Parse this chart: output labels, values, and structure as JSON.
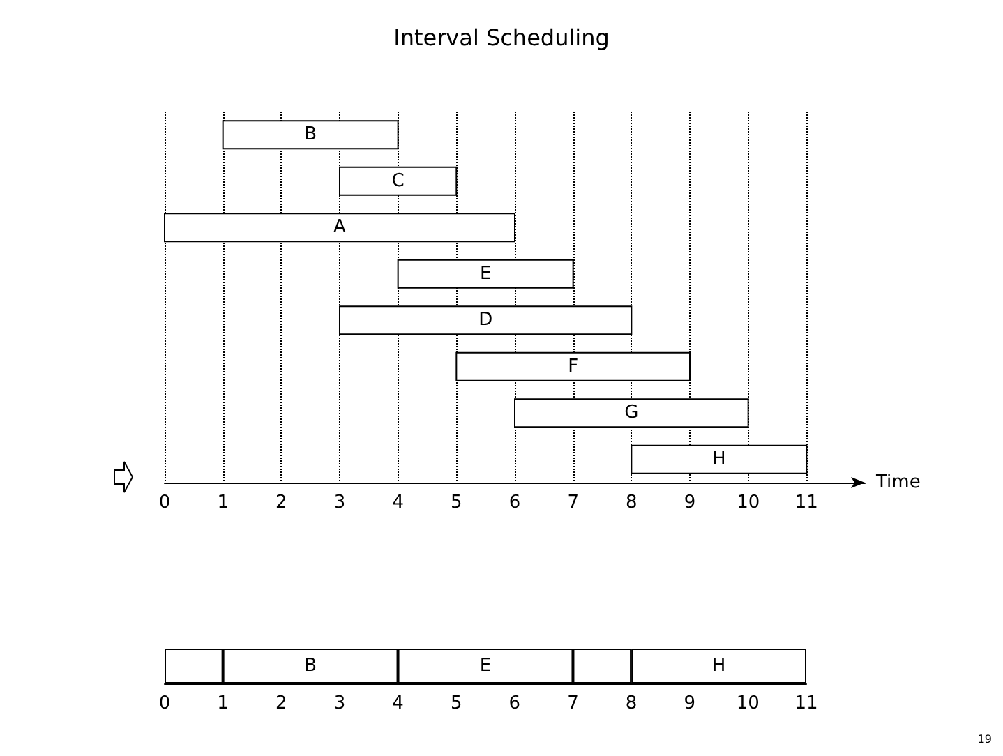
{
  "chart_data": [
    {
      "type": "bar",
      "title": "Interval Scheduling",
      "orientation": "horizontal",
      "categories": [
        "B",
        "C",
        "A",
        "E",
        "D",
        "F",
        "G",
        "H"
      ],
      "base": [
        1,
        3,
        0,
        4,
        3,
        5,
        6,
        8
      ],
      "values": [
        3,
        2,
        6,
        3,
        5,
        4,
        4,
        3
      ],
      "color": "#ffffff",
      "xlim": [
        0,
        12
      ],
      "xticks": [
        0,
        1,
        2,
        3,
        4,
        5,
        6,
        7,
        8,
        9,
        10,
        11
      ],
      "xlabel": "Time",
      "grid": "x",
      "tick_labels": "x",
      "legend": false
    },
    {
      "type": "bar",
      "orientation": "horizontal",
      "stacked": true,
      "categories": [
        null
      ],
      "series": [
        {
          "color": "#ffffff",
          "values": [
            1
          ]
        },
        {
          "name": "B",
          "color": "#ffffff",
          "values": [
            3
          ]
        },
        {
          "name": "E",
          "color": "#ffffff",
          "values": [
            3
          ]
        },
        {
          "color": "#ffffff",
          "values": [
            1
          ]
        },
        {
          "name": "H",
          "color": "#ffffff",
          "values": [
            3
          ]
        }
      ],
      "xlim": [
        0,
        11
      ],
      "xticks": [
        0,
        1,
        2,
        3,
        4,
        5,
        6,
        7,
        8,
        9,
        10,
        11
      ],
      "tick_labels": "x",
      "grid": false,
      "legend": false,
      "annotations": [
        "19"
      ]
    }
  ]
}
